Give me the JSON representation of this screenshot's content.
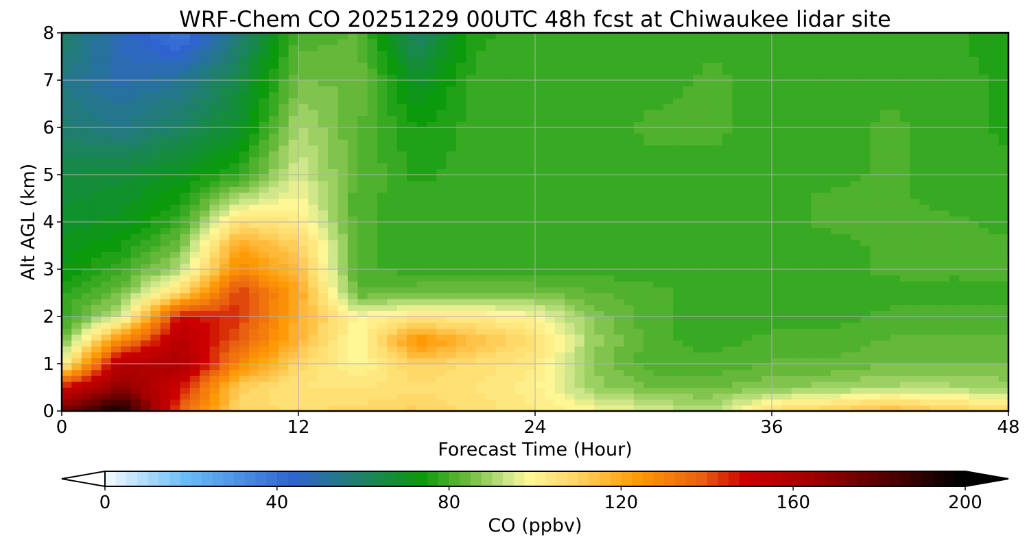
{
  "chart_data": {
    "type": "heatmap",
    "title": "WRF-Chem CO  20251229 00UTC 48h fcst at Chiwaukee lidar site",
    "xlabel": "Forecast Time (Hour)",
    "ylabel": "Alt AGL (km)",
    "xlim": [
      0,
      48
    ],
    "ylim": [
      0,
      8
    ],
    "xticks": [
      "0",
      "12",
      "24",
      "36",
      "48"
    ],
    "yticks": [
      "0",
      "1",
      "2",
      "3",
      "4",
      "5",
      "6",
      "7",
      "8"
    ],
    "grid": true,
    "x_hours": [
      0,
      3,
      6,
      9,
      12,
      15,
      18,
      21,
      24,
      27,
      30,
      33,
      36,
      39,
      42,
      45,
      48
    ],
    "y_km": [
      0,
      0.5,
      1,
      1.5,
      2,
      2.5,
      3,
      3.5,
      4,
      4.5,
      5,
      6,
      7,
      8
    ],
    "z_ppbv": [
      [
        175,
        198,
        140,
        110,
        108,
        110,
        112,
        108,
        104,
        100,
        96,
        92,
        108,
        112,
        118,
        112,
        110
      ],
      [
        150,
        170,
        150,
        112,
        106,
        106,
        108,
        106,
        102,
        90,
        86,
        86,
        88,
        90,
        92,
        92,
        90
      ],
      [
        100,
        160,
        162,
        130,
        110,
        100,
        112,
        108,
        104,
        88,
        82,
        82,
        84,
        84,
        86,
        86,
        86
      ],
      [
        84,
        130,
        158,
        140,
        118,
        98,
        128,
        116,
        108,
        90,
        82,
        80,
        82,
        82,
        84,
        84,
        84
      ],
      [
        80,
        95,
        150,
        145,
        120,
        100,
        104,
        104,
        100,
        88,
        82,
        80,
        80,
        80,
        82,
        82,
        82
      ],
      [
        78,
        86,
        110,
        145,
        122,
        84,
        86,
        86,
        86,
        84,
        82,
        80,
        80,
        80,
        80,
        80,
        80
      ],
      [
        74,
        80,
        92,
        130,
        116,
        82,
        80,
        80,
        80,
        80,
        80,
        80,
        80,
        80,
        82,
        82,
        82
      ],
      [
        72,
        76,
        86,
        122,
        112,
        82,
        80,
        80,
        80,
        80,
        80,
        80,
        80,
        80,
        82,
        82,
        82
      ],
      [
        70,
        72,
        80,
        108,
        104,
        82,
        80,
        80,
        80,
        80,
        80,
        80,
        80,
        82,
        82,
        82,
        80
      ],
      [
        68,
        70,
        76,
        92,
        100,
        82,
        80,
        80,
        80,
        80,
        80,
        80,
        80,
        82,
        82,
        80,
        80
      ],
      [
        66,
        68,
        72,
        80,
        96,
        84,
        78,
        80,
        80,
        80,
        80,
        80,
        80,
        80,
        82,
        80,
        80
      ],
      [
        60,
        56,
        62,
        70,
        92,
        84,
        76,
        80,
        80,
        80,
        82,
        82,
        80,
        80,
        82,
        80,
        78
      ],
      [
        56,
        50,
        54,
        66,
        86,
        86,
        70,
        80,
        80,
        80,
        80,
        82,
        80,
        80,
        80,
        80,
        78
      ],
      [
        62,
        48,
        38,
        58,
        82,
        84,
        60,
        78,
        80,
        80,
        80,
        80,
        80,
        80,
        80,
        80,
        76
      ]
    ],
    "colorbar": {
      "label": "CO  (ppbv)",
      "range": [
        0,
        200
      ],
      "ticks": [
        "0",
        "40",
        "80",
        "120",
        "160",
        "200"
      ],
      "extend": "both",
      "stops": [
        {
          "v": 0,
          "c": "#ffffff"
        },
        {
          "v": 20,
          "c": "#69bdf6"
        },
        {
          "v": 45,
          "c": "#2f63d0"
        },
        {
          "v": 60,
          "c": "#1f7f6c"
        },
        {
          "v": 75,
          "c": "#0a9a0a"
        },
        {
          "v": 85,
          "c": "#66b83a"
        },
        {
          "v": 95,
          "c": "#cfe78a"
        },
        {
          "v": 100,
          "c": "#fff696"
        },
        {
          "v": 110,
          "c": "#ffd86a"
        },
        {
          "v": 125,
          "c": "#ff9a06"
        },
        {
          "v": 140,
          "c": "#e86010"
        },
        {
          "v": 150,
          "c": "#cc0000"
        },
        {
          "v": 165,
          "c": "#a30000"
        },
        {
          "v": 185,
          "c": "#4a0000"
        },
        {
          "v": 200,
          "c": "#000000"
        }
      ]
    }
  }
}
